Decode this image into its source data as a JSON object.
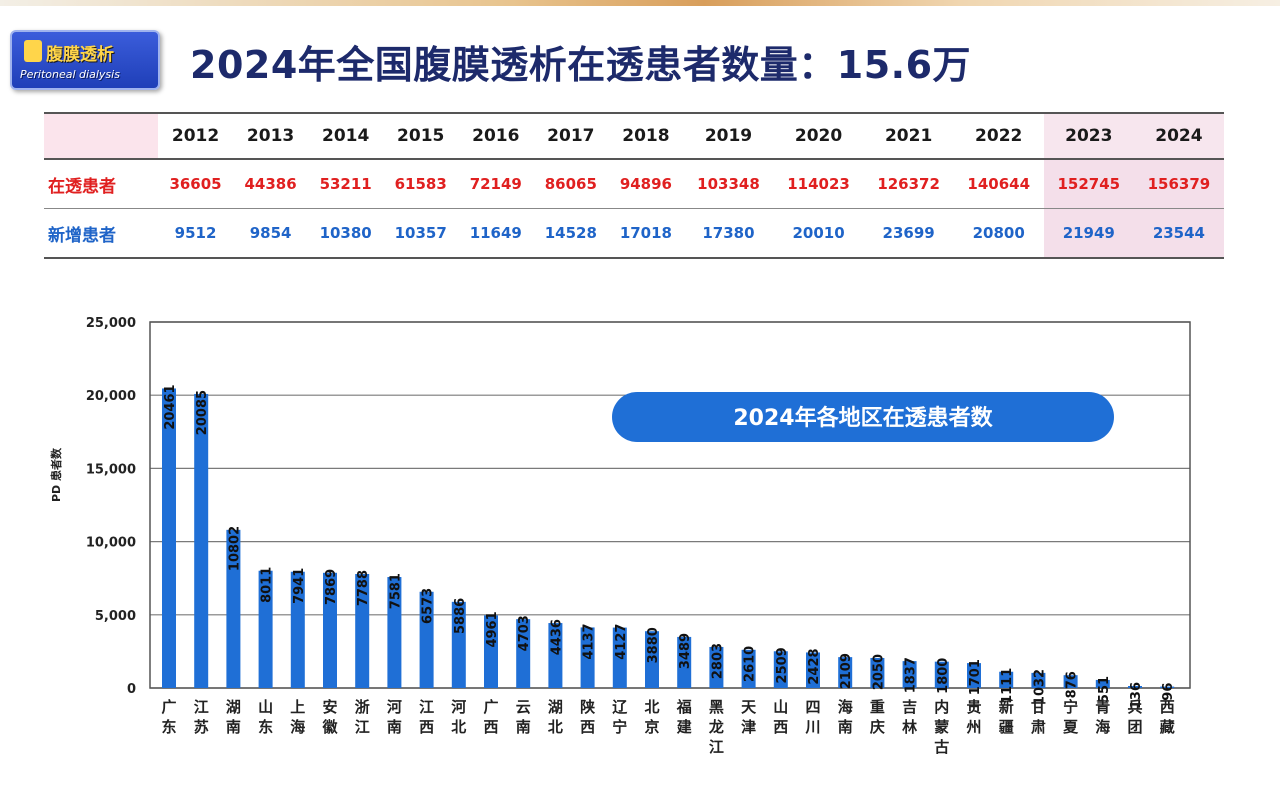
{
  "logo": {
    "title_cn": "腹膜透析",
    "title_en": "Peritoneal dialysis"
  },
  "page_title": "2024年全国腹膜透析在透患者数量：15.6万",
  "table": {
    "years": [
      "2012",
      "2013",
      "2014",
      "2015",
      "2016",
      "2017",
      "2018",
      "2019",
      "2020",
      "2021",
      "2022",
      "2023",
      "2024"
    ],
    "rows": [
      {
        "label": "在透患者",
        "values": [
          "36605",
          "44386",
          "53211",
          "61583",
          "72149",
          "86065",
          "94896",
          "103348",
          "114023",
          "126372",
          "140644",
          "152745",
          "156379"
        ]
      },
      {
        "label": "新增患者",
        "values": [
          "9512",
          "9854",
          "10380",
          "10357",
          "11649",
          "14528",
          "17018",
          "17380",
          "20010",
          "23699",
          "20800",
          "21949",
          "23544"
        ]
      }
    ],
    "highlight_years": [
      "2023",
      "2024"
    ]
  },
  "chart_data": {
    "type": "bar",
    "title": "2024年各地区在透患者数",
    "ylabel": "PD 患者数",
    "ylim": [
      0,
      25000
    ],
    "yticks": [
      "0",
      "5,000",
      "10,000",
      "15,000",
      "20,000",
      "25,000"
    ],
    "grid": true,
    "bar_color": "#1f6fd6",
    "categories": [
      "广东",
      "江苏",
      "湖南",
      "山东",
      "上海",
      "安徽",
      "浙江",
      "河南",
      "江西",
      "河北",
      "广西",
      "云南",
      "湖北",
      "陕西",
      "辽宁",
      "北京",
      "福建",
      "黑龙江",
      "天津",
      "山西",
      "四川",
      "海南",
      "重庆",
      "吉林",
      "内蒙古",
      "贵州",
      "新疆",
      "甘肃",
      "宁夏",
      "青海",
      "兵团",
      "西藏"
    ],
    "values": [
      20461,
      20085,
      10802,
      8011,
      7941,
      7869,
      7788,
      7581,
      6573,
      5886,
      4961,
      4703,
      4436,
      4137,
      4127,
      3880,
      3489,
      2803,
      2610,
      2509,
      2428,
      2109,
      2050,
      1837,
      1800,
      1701,
      1111,
      1032,
      876,
      551,
      136,
      96
    ]
  }
}
